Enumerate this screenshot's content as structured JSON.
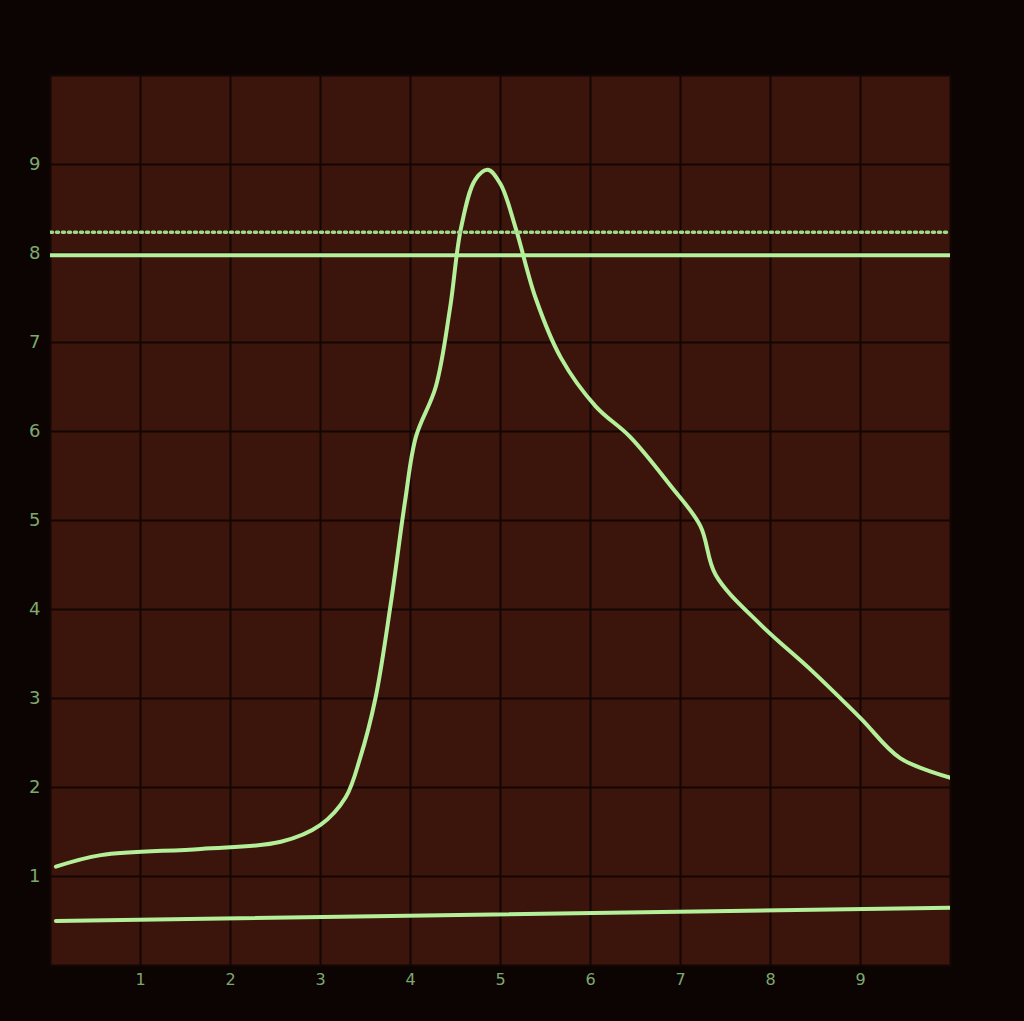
{
  "chart_data": {
    "type": "line",
    "xlim": [
      0,
      10
    ],
    "ylim": [
      0,
      10
    ],
    "xticks": [
      1,
      2,
      3,
      4,
      5,
      6,
      7,
      8,
      9
    ],
    "yticks": [
      1,
      2,
      3,
      4,
      5,
      6,
      7,
      8,
      9
    ],
    "grid": true,
    "series": [
      {
        "color": "#b4f09a",
        "line_style": "solid",
        "x": [
          0.06,
          0.56,
          1.67,
          2.56,
          3.0,
          3.28,
          3.44,
          3.61,
          3.78,
          3.94,
          4.06,
          4.28,
          4.44,
          4.56,
          4.72,
          4.86,
          5.0,
          5.17,
          5.39,
          5.67,
          6.06,
          6.44,
          6.89,
          7.22,
          7.39,
          7.89,
          8.44,
          9.0,
          9.44,
          10.0
        ],
        "values": [
          1.11,
          1.24,
          1.31,
          1.39,
          1.58,
          1.89,
          2.33,
          3.0,
          4.06,
          5.22,
          5.94,
          6.5,
          7.39,
          8.28,
          8.83,
          8.94,
          8.78,
          8.28,
          7.5,
          6.83,
          6.28,
          5.94,
          5.39,
          4.94,
          4.39,
          3.83,
          3.33,
          2.78,
          2.33,
          2.11
        ]
      },
      {
        "color": "#b4f09a",
        "line_style": "solid",
        "x": [
          0.06,
          10.0
        ],
        "values": [
          0.5,
          0.65
        ]
      },
      {
        "color": "#b4f09a",
        "line_style": "solid",
        "x": [
          0.0,
          10.0
        ],
        "values": [
          7.98,
          7.98
        ]
      },
      {
        "color": "#9fd88a",
        "line_style": "dotted",
        "x": [
          0.0,
          10.0
        ],
        "values": [
          8.24,
          8.24
        ]
      }
    ]
  }
}
